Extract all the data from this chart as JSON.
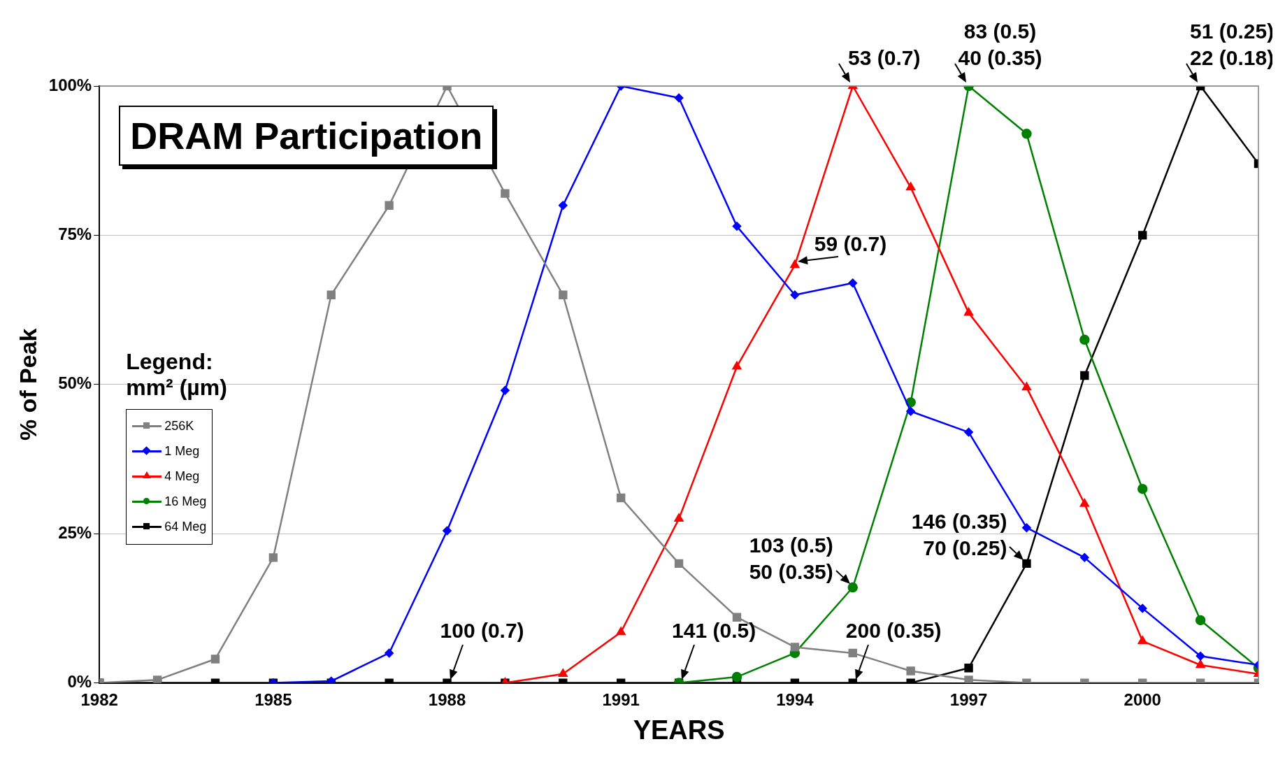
{
  "chart_data": {
    "type": "line",
    "title": "DRAM Participation",
    "xlabel": "YEARS",
    "ylabel": "% of Peak",
    "legend_title": "Legend:\nmm² (µm)",
    "legend": "left",
    "grid": "y",
    "x": [
      1982,
      1983,
      1984,
      1985,
      1986,
      1987,
      1988,
      1989,
      1990,
      1991,
      1992,
      1993,
      1994,
      1995,
      1996,
      1997,
      1998,
      1999,
      2000,
      2001,
      2002
    ],
    "xlim": [
      1982,
      2002
    ],
    "xticks": [
      1982,
      1985,
      1988,
      1991,
      1994,
      1997,
      2000
    ],
    "ylim": [
      0,
      100
    ],
    "yticks": [
      {
        "value": 0,
        "label": "0%"
      },
      {
        "value": 25,
        "label": "25%"
      },
      {
        "value": 50,
        "label": "50%"
      },
      {
        "value": 75,
        "label": "75%"
      },
      {
        "value": 100,
        "label": "100%"
      }
    ],
    "series": [
      {
        "name": "256K",
        "color": "#808080",
        "marker": "square",
        "values": [
          0,
          0.5,
          4,
          21,
          65,
          80,
          100,
          82,
          65,
          31,
          20,
          11,
          6,
          5,
          2,
          0.5,
          0,
          0,
          0,
          0,
          0
        ]
      },
      {
        "name": "1 Meg",
        "color": "#0000ff",
        "marker": "diamond",
        "values": [
          null,
          null,
          null,
          0,
          0.3,
          5,
          25.5,
          49,
          80,
          100,
          98,
          76.5,
          65,
          67,
          45.5,
          42,
          26,
          21,
          12.5,
          4.5,
          3
        ]
      },
      {
        "name": "4 Meg",
        "color": "#ff0000",
        "marker": "triangle",
        "values": [
          null,
          null,
          null,
          null,
          null,
          null,
          null,
          0,
          1.5,
          8.5,
          27.5,
          53,
          70,
          100,
          83,
          62,
          49.5,
          30,
          7,
          3,
          1.5
        ]
      },
      {
        "name": "16 Meg",
        "color": "#008000",
        "marker": "circle",
        "values": [
          null,
          null,
          null,
          null,
          null,
          null,
          null,
          null,
          null,
          null,
          0,
          1,
          5,
          16,
          47,
          100,
          92,
          57.5,
          32.5,
          10.5,
          2.5
        ]
      },
      {
        "name": "64 Meg",
        "color": "#000000",
        "marker": "square",
        "values": [
          0,
          0,
          0,
          0,
          0,
          0,
          0,
          0,
          0,
          0,
          0,
          0,
          0,
          0,
          0,
          2.5,
          20,
          51.5,
          75,
          100,
          87
        ]
      }
    ],
    "annotations": [
      {
        "text": "100 (0.7)",
        "x": 1988,
        "y": 0
      },
      {
        "text": "141 (0.5)",
        "x": 1992,
        "y": 0
      },
      {
        "text": "200 (0.35)",
        "x": 1995,
        "y": 0
      },
      {
        "text": "59 (0.7)",
        "x": 1994,
        "y": 70
      },
      {
        "text": "53 (0.7)",
        "x": 1995,
        "y": 100
      },
      {
        "text": "103 (0.5)\n50 (0.35)",
        "x": 1995,
        "y": 16
      },
      {
        "text": "83 (0.5)\n40 (0.35)",
        "x": 1997,
        "y": 100
      },
      {
        "text": "146 (0.35)\n70 (0.25)",
        "x": 1998,
        "y": 20
      },
      {
        "text": "51 (0.25)\n22 (0.18)",
        "x": 2001,
        "y": 100
      }
    ]
  }
}
